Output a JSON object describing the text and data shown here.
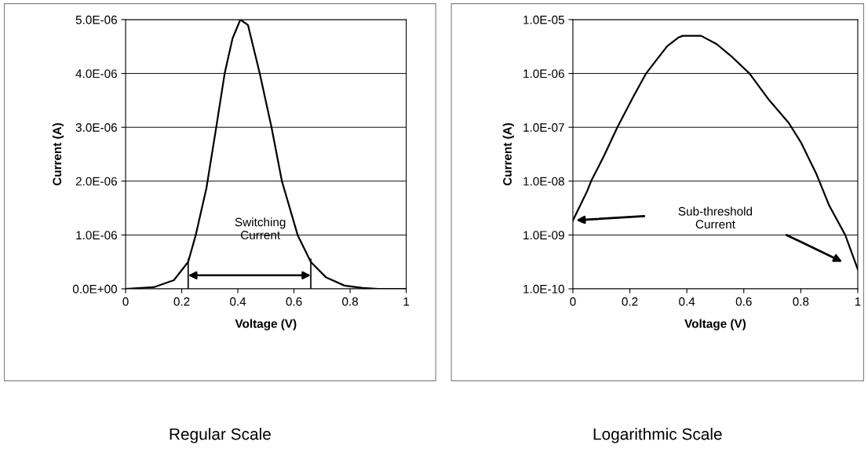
{
  "chart_data": [
    {
      "type": "line",
      "title": "Regular Scale",
      "xlabel": "Voltage (V)",
      "ylabel": "Current (A)",
      "x": [
        0,
        0.1,
        0.172,
        0.223,
        0.25,
        0.288,
        0.323,
        0.353,
        0.381,
        0.409,
        0.436,
        0.478,
        0.52,
        0.557,
        0.613,
        0.66,
        0.715,
        0.78,
        0.845,
        0.9,
        1.0
      ],
      "series": [
        {
          "color": "#000000",
          "values": [
            0,
            3e-08,
            1.6e-07,
            5e-07,
            1e-06,
            1.87e-06,
            3e-06,
            4e-06,
            4.65e-06,
            5e-06,
            4.9e-06,
            4e-06,
            3e-06,
            2e-06,
            1e-06,
            5e-07,
            2.1e-07,
            6e-08,
            1.5e-08,
            0,
            0
          ]
        }
      ],
      "xlim": [
        0,
        1
      ],
      "xticks": [
        0,
        0.2,
        0.4,
        0.6,
        0.8,
        1
      ],
      "ylim": [
        0,
        5e-06
      ],
      "yticks": [
        {
          "value": 0,
          "label": "0.0E+00"
        },
        {
          "value": 1e-06,
          "label": "1.0E-06"
        },
        {
          "value": 2e-06,
          "label": "2.0E-06"
        },
        {
          "value": 3e-06,
          "label": "3.0E-06"
        },
        {
          "value": 4e-06,
          "label": "4.0E-06"
        },
        {
          "value": 5e-06,
          "label": "5.0E-06"
        }
      ],
      "ref_lines": [
        {
          "axis": "x",
          "value": 0.223
        },
        {
          "axis": "x",
          "value": 0.66
        }
      ],
      "annotations": [
        "Switching\nCurrent"
      ],
      "grid": "y",
      "marker": "none",
      "line_style": "solid"
    },
    {
      "type": "line",
      "title": "Logarithmic Scale",
      "xlabel": "Voltage (V)",
      "ylabel": "Current (A)",
      "x": [
        0,
        0.05,
        0.064,
        0.11,
        0.156,
        0.211,
        0.257,
        0.294,
        0.331,
        0.372,
        0.386,
        0.45,
        0.505,
        0.56,
        0.62,
        0.689,
        0.758,
        0.8,
        0.855,
        0.9,
        0.956,
        1.0
      ],
      "series": [
        {
          "color": "#000000",
          "values": [
            1.86e-09,
            6.5e-09,
            1e-08,
            3e-08,
            1e-07,
            3.6e-07,
            1e-06,
            1.8e-06,
            3.2e-06,
            4.7e-06,
            5e-06,
            5e-06,
            3.5e-06,
            2e-06,
            1e-06,
            3.2e-07,
            1.2e-07,
            5.3e-08,
            1.35e-08,
            3.5e-09,
            1e-09,
            2.3e-10
          ]
        }
      ],
      "xlim": [
        0,
        1
      ],
      "xticks": [
        0,
        0.2,
        0.4,
        0.6,
        0.8,
        1
      ],
      "log": "y",
      "ylim": [
        1e-10,
        1e-05
      ],
      "yticks": [
        {
          "value": 1e-10,
          "label": "1.0E-10"
        },
        {
          "value": 1e-09,
          "label": "1.0E-09"
        },
        {
          "value": 1e-08,
          "label": "1.0E-08"
        },
        {
          "value": 1e-07,
          "label": "1.0E-07"
        },
        {
          "value": 1e-06,
          "label": "1.0E-06"
        },
        {
          "value": 1e-05,
          "label": "1.0E-05"
        }
      ],
      "annotations": [
        "Sub-threshold\nCurrent"
      ],
      "grid": "y",
      "marker": "none",
      "line_style": "solid"
    }
  ]
}
